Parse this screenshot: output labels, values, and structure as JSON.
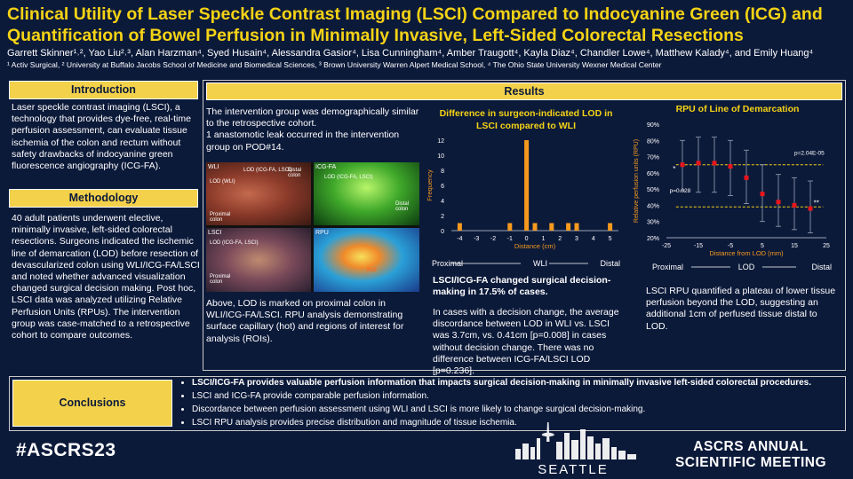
{
  "header": {
    "title": "Clinical Utility of Laser Speckle Contrast Imaging (LSCI) Compared to Indocyanine Green (ICG) and Quantification of Bowel Perfusion in Minimally Invasive, Left-Sided Colorectal Resections",
    "authors": "Garrett Skinner¹˒², Yao Liu²˒³, Alan Harzman⁴, Syed Husain⁴, Alessandra Gasior⁴, Lisa Cunningham⁴, Amber Traugott⁴, Kayla Diaz⁴, Chandler Lowe⁴, Matthew Kalady⁴, and Emily Huang⁴",
    "affiliations": "¹ Activ Surgical, ² University at Buffalo Jacobs School of Medicine and Biomedical Sciences, ³ Brown University Warren Alpert Medical School, ⁴ The Ohio State University Wexner Medical Center"
  },
  "introduction": {
    "heading": "Introduction",
    "body": "Laser speckle contrast imaging (LSCI), a technology that provides dye-free, real-time perfusion assessment, can evaluate tissue ischemia of the colon and rectum without safety drawbacks of indocyanine green fluorescence angiography (ICG-FA)."
  },
  "methodology": {
    "heading": "Methodology",
    "body": "40 adult patients underwent elective, minimally invasive, left-sided colorectal resections. Surgeons indicated the ischemic line of demarcation (LOD) before resection of devascularized colon using WLI/ICG-FA/LSCI and noted whether advanced visualization changed surgical decision making. Post hoc, LSCI data was analyzed utilizing Relative Perfusion Units (RPUs). The intervention group was case-matched to a retrospective cohort to compare outcomes."
  },
  "results": {
    "heading": "Results",
    "intro": "The intervention group was demographically similar to the retrospective cohort.\n1 anastomotic leak occurred in the intervention group on POD#14.",
    "image_labels": {
      "wli": "WLI",
      "icg": "ICG-FA",
      "lsci": "LSCI",
      "rpu": "RPU",
      "distal_colon": "Distal colon",
      "proximal_colon": "Proximal colon",
      "lod_wli": "LOD (WLI)",
      "lod_icg_lsci": "LOD (ICG-FA, LSCI)",
      "roi": "ROI"
    },
    "image_caption": "Above, LOD is marked on proximal colon in WLI/ICG-FA/LSCI. RPU analysis demonstrating surface capillary (hot) and regions of interest for analysis (ROIs).",
    "mid_bold": "LSCI/ICG-FA changed surgical decision-making in 17.5% of cases.",
    "mid_body": "In cases with a decision change, the average discordance between LOD in WLI vs. LSCI was 3.7cm, vs. 0.41cm [p=0.008] in cases without decision change. There was no difference between ICG-FA/LSCI LOD [p=0.236].",
    "right_body": "LSCI RPU quantified a plateau of lower tissue perfusion beyond the LOD, suggesting an additional 1cm of perfused tissue distal to LOD."
  },
  "chart_data": [
    {
      "type": "bar",
      "title": "Difference in surgeon-indicated LOD in LSCI compared to WLI",
      "xlabel": "Distance (cm)",
      "ylabel": "Frequency",
      "xlim": [
        -4.5,
        5.5
      ],
      "ylim": [
        0,
        12
      ],
      "xticks": [
        -4,
        -3,
        -2,
        -1,
        0,
        1,
        2,
        3,
        4,
        5
      ],
      "yticks": [
        0,
        2,
        4,
        6,
        8,
        10,
        12
      ],
      "x": [
        -4,
        -1,
        0,
        0.5,
        1.5,
        2.5,
        3,
        5
      ],
      "values": [
        1,
        1,
        12,
        1,
        1,
        1,
        1,
        1
      ],
      "direction_labels": [
        "Proximal",
        "WLI",
        "Distal"
      ]
    },
    {
      "type": "scatter",
      "title": "RPU of Line of Demarcation",
      "xlabel": "Distance from LOD (mm)",
      "ylabel": "Relative perfusion units (RPU)",
      "xlim": [
        -25,
        25
      ],
      "ylim": [
        20,
        90
      ],
      "xticks": [
        -25,
        -15,
        -5,
        5,
        15,
        25
      ],
      "yticks": [
        20,
        30,
        40,
        50,
        60,
        70,
        80,
        90
      ],
      "ytick_suffix": "%",
      "x": [
        -20,
        -15,
        -10,
        -5,
        0,
        5,
        10,
        15,
        20
      ],
      "values": [
        65,
        66,
        66,
        64,
        57,
        47,
        42,
        40,
        38
      ],
      "err_low": [
        49,
        48,
        48,
        46,
        41,
        30,
        27,
        25,
        23
      ],
      "err_high": [
        80,
        82,
        82,
        80,
        74,
        65,
        59,
        57,
        55
      ],
      "ref_lines": [
        65,
        39
      ],
      "annotations": [
        "p=0.028",
        "p=2.04E-05",
        "*",
        "**"
      ],
      "direction_labels": [
        "Proximal",
        "LOD",
        "Distal"
      ]
    }
  ],
  "conclusions": {
    "heading": "Conclusions",
    "items": [
      "LSCI/ICG-FA provides valuable perfusion information that impacts surgical decision-making in minimally invasive left-sided colorectal procedures.",
      "LSCI and ICG-FA provide comparable perfusion information.",
      "Discordance between perfusion assessment using WLI and LSCI is more likely to change surgical decision-making.",
      "LSCI RPU analysis provides precise distribution and magnitude of tissue ischemia."
    ]
  },
  "footer": {
    "hashtag": "#ASCRS23",
    "city": "SEATTLE",
    "meeting_line1": "ASCRS ANNUAL",
    "meeting_line2": "SCIENTIFIC MEETING"
  },
  "colors": {
    "navy": "#0c1a3a",
    "gold": "#f3d14a",
    "bar": "#f59a1e",
    "marker": "#e8151b",
    "ref": "#f5d315"
  }
}
